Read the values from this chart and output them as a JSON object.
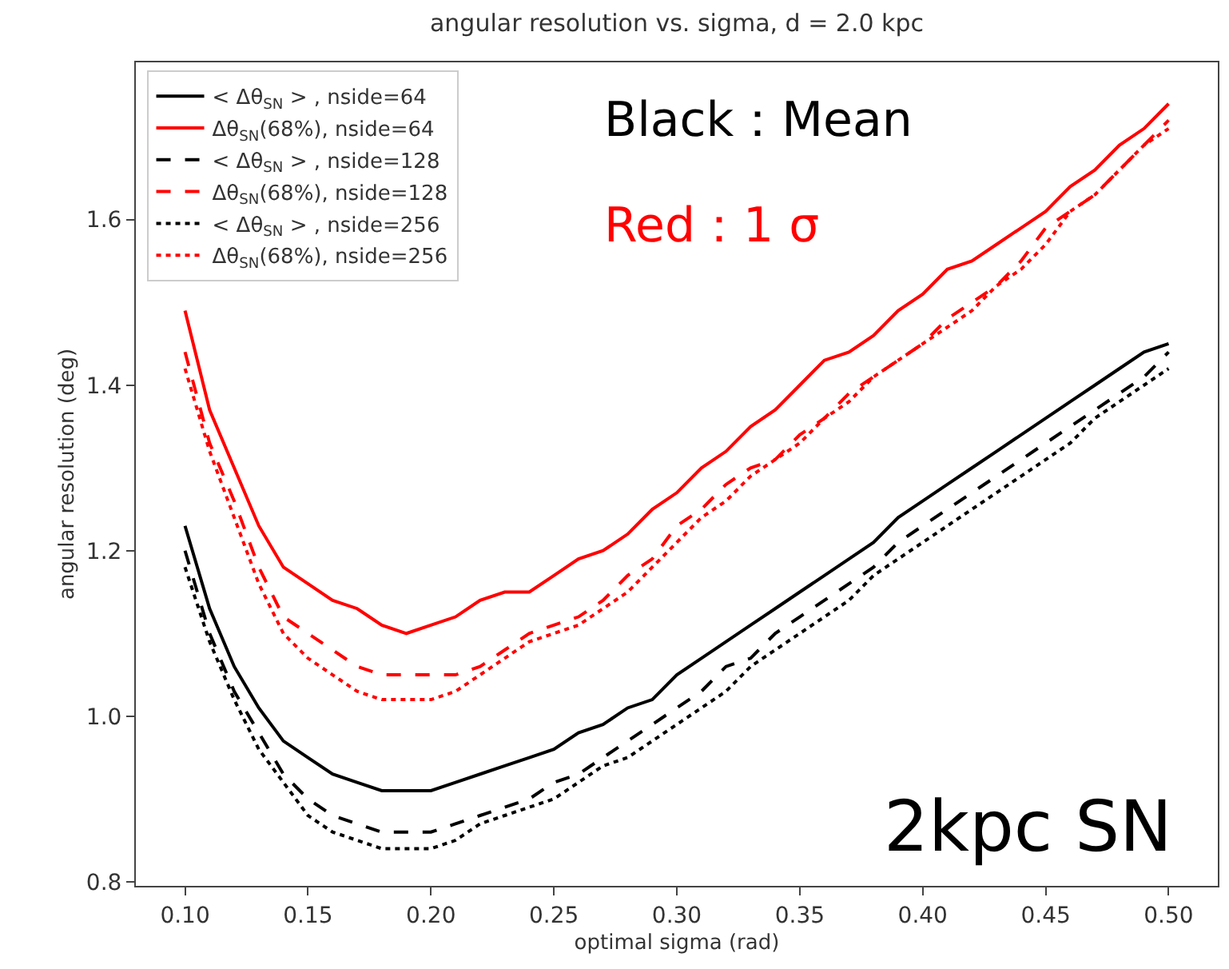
{
  "chart_data": {
    "type": "line",
    "title": "angular resolution vs. sigma, d = 2.0 kpc",
    "xlabel": "optimal sigma (rad)",
    "ylabel": "angular resolution (deg)",
    "x": [
      0.1,
      0.11,
      0.12,
      0.13,
      0.14,
      0.15,
      0.16,
      0.17,
      0.18,
      0.19,
      0.2,
      0.21,
      0.22,
      0.23,
      0.24,
      0.25,
      0.26,
      0.27,
      0.28,
      0.29,
      0.3,
      0.31,
      0.32,
      0.33,
      0.34,
      0.35,
      0.36,
      0.37,
      0.38,
      0.39,
      0.4,
      0.41,
      0.42,
      0.43,
      0.44,
      0.45,
      0.46,
      0.47,
      0.48,
      0.49,
      0.5
    ],
    "series": [
      {
        "name": "< Δθ$_{SN}$ > , nside=64",
        "color": "#000000",
        "line_style": "solid",
        "values": [
          1.23,
          1.13,
          1.06,
          1.01,
          0.97,
          0.95,
          0.93,
          0.92,
          0.91,
          0.91,
          0.91,
          0.92,
          0.93,
          0.94,
          0.95,
          0.96,
          0.98,
          0.99,
          1.01,
          1.02,
          1.05,
          1.07,
          1.09,
          1.11,
          1.13,
          1.15,
          1.17,
          1.19,
          1.21,
          1.24,
          1.26,
          1.28,
          1.3,
          1.32,
          1.34,
          1.36,
          1.38,
          1.4,
          1.42,
          1.44,
          1.45
        ]
      },
      {
        "name": "Δθ$_{SN}$(68%), nside=64",
        "color": "#ff0000",
        "line_style": "solid",
        "values": [
          1.49,
          1.37,
          1.3,
          1.23,
          1.18,
          1.16,
          1.14,
          1.13,
          1.11,
          1.1,
          1.11,
          1.12,
          1.14,
          1.15,
          1.15,
          1.17,
          1.19,
          1.2,
          1.22,
          1.25,
          1.27,
          1.3,
          1.32,
          1.35,
          1.37,
          1.4,
          1.43,
          1.44,
          1.46,
          1.49,
          1.51,
          1.54,
          1.55,
          1.57,
          1.59,
          1.61,
          1.64,
          1.66,
          1.69,
          1.71,
          1.74
        ]
      },
      {
        "name": "< Δθ$_{SN}$ > , nside=128",
        "color": "#000000",
        "line_style": "dashed",
        "values": [
          1.2,
          1.1,
          1.03,
          0.98,
          0.93,
          0.9,
          0.88,
          0.87,
          0.86,
          0.86,
          0.86,
          0.87,
          0.88,
          0.89,
          0.9,
          0.92,
          0.93,
          0.95,
          0.97,
          0.99,
          1.01,
          1.03,
          1.06,
          1.07,
          1.1,
          1.12,
          1.14,
          1.16,
          1.18,
          1.21,
          1.23,
          1.25,
          1.27,
          1.29,
          1.31,
          1.33,
          1.35,
          1.37,
          1.39,
          1.41,
          1.44
        ]
      },
      {
        "name": "Δθ$_{SN}$(68%), nside=128",
        "color": "#ff0000",
        "line_style": "dashed",
        "values": [
          1.44,
          1.33,
          1.26,
          1.18,
          1.12,
          1.1,
          1.08,
          1.06,
          1.05,
          1.05,
          1.05,
          1.05,
          1.06,
          1.08,
          1.1,
          1.11,
          1.12,
          1.14,
          1.17,
          1.19,
          1.23,
          1.25,
          1.28,
          1.3,
          1.31,
          1.34,
          1.36,
          1.39,
          1.41,
          1.43,
          1.45,
          1.48,
          1.5,
          1.52,
          1.55,
          1.59,
          1.61,
          1.63,
          1.66,
          1.69,
          1.72
        ]
      },
      {
        "name": "< Δθ$_{SN}$ > , nside=256",
        "color": "#000000",
        "line_style": "dotted",
        "values": [
          1.18,
          1.09,
          1.02,
          0.96,
          0.92,
          0.88,
          0.86,
          0.85,
          0.84,
          0.84,
          0.84,
          0.85,
          0.87,
          0.88,
          0.89,
          0.9,
          0.92,
          0.94,
          0.95,
          0.97,
          0.99,
          1.01,
          1.03,
          1.06,
          1.08,
          1.1,
          1.12,
          1.14,
          1.17,
          1.19,
          1.21,
          1.23,
          1.25,
          1.27,
          1.29,
          1.31,
          1.33,
          1.36,
          1.38,
          1.4,
          1.42
        ]
      },
      {
        "name": "Δθ$_{SN}$(68%), nside=256",
        "color": "#ff0000",
        "line_style": "dotted",
        "values": [
          1.42,
          1.32,
          1.24,
          1.16,
          1.1,
          1.07,
          1.05,
          1.03,
          1.02,
          1.02,
          1.02,
          1.03,
          1.05,
          1.07,
          1.09,
          1.1,
          1.11,
          1.13,
          1.15,
          1.18,
          1.21,
          1.24,
          1.26,
          1.29,
          1.31,
          1.33,
          1.36,
          1.38,
          1.41,
          1.43,
          1.45,
          1.47,
          1.49,
          1.52,
          1.54,
          1.57,
          1.61,
          1.63,
          1.66,
          1.69,
          1.71
        ]
      }
    ],
    "xlim": [
      0.08,
      0.52
    ],
    "ylim": [
      0.795,
      1.79
    ],
    "xticks": [
      {
        "value": 0.1,
        "label": "0.10"
      },
      {
        "value": 0.15,
        "label": "0.15"
      },
      {
        "value": 0.2,
        "label": "0.20"
      },
      {
        "value": 0.25,
        "label": "0.25"
      },
      {
        "value": 0.3,
        "label": "0.30"
      },
      {
        "value": 0.35,
        "label": "0.35"
      },
      {
        "value": 0.4,
        "label": "0.40"
      },
      {
        "value": 0.45,
        "label": "0.45"
      },
      {
        "value": 0.5,
        "label": "0.50"
      }
    ],
    "yticks": [
      0.8,
      {
        "value": 1.0,
        "label": "1.0"
      },
      1.2,
      1.4,
      1.6
    ],
    "annotations": [
      "Black：Mean",
      "Red：1 σ",
      "2kpc SN"
    ],
    "legend": "top left",
    "grid": false,
    "marker": "none"
  }
}
